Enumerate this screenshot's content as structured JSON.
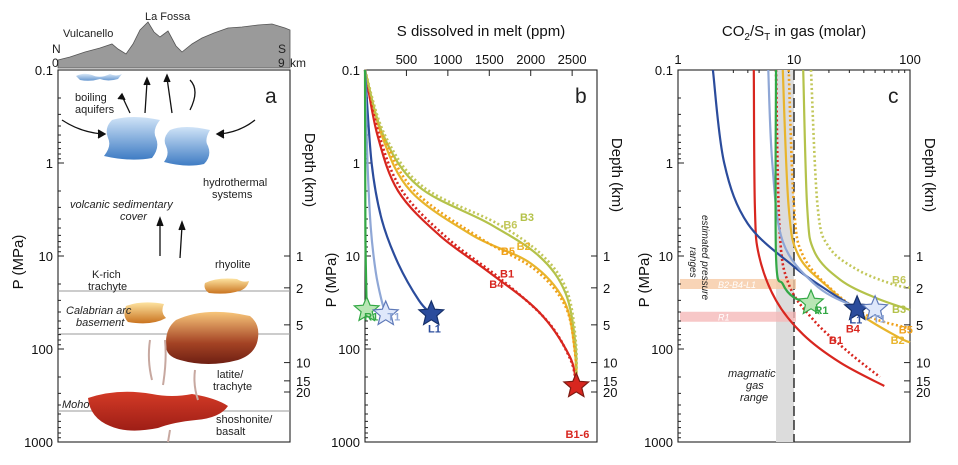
{
  "colors": {
    "B1": "#d8261f",
    "B2": "#e8b52c",
    "B3": "#b4c24a",
    "B4": "#d8261f",
    "B5": "#f0a11a",
    "B6": "#c2c75a",
    "L1": "#2b4c9c",
    "T1": "#8fa7d6",
    "R1": "#33a845",
    "star_red": "#d8261f"
  },
  "panel_a": {
    "letter": "a",
    "ylabel": "P (MPa)",
    "depth_label": "Depth (km)",
    "p_ticks": [
      "0.1",
      "1",
      "10",
      "100",
      "1000"
    ],
    "depth_ticks": [
      "1",
      "2",
      "5",
      "10",
      "15",
      "20"
    ],
    "profile": {
      "vulcanello": "Vulcanello",
      "la_fossa": "La Fossa",
      "n": "N",
      "s": "S",
      "zero": "0",
      "nine": "9",
      "km": "km"
    },
    "labels": {
      "boiling": "boiling",
      "aquifers": "aquifers",
      "hydro1": "hydrothermal",
      "hydro2": "systems",
      "volc1": "volcanic sedimentary",
      "volc2": "cover",
      "krich1": "K-rich",
      "krich2": "trachyte",
      "rhyolite": "rhyolite",
      "calab1": "Calabrian arc",
      "calab2": "basement",
      "latite1": "latite/",
      "latite2": "trachyte",
      "moho": "Moho",
      "shosh1": "shoshonite/",
      "shosh2": "basalt"
    }
  },
  "panel_b": {
    "letter": "b",
    "title": "S dissolved in melt (ppm)",
    "ylabel": "P (MPa)",
    "depth_label": "Depth (km)",
    "p_ticks": [
      "0.1",
      "1",
      "10",
      "100",
      "1000"
    ],
    "depth_ticks": [
      "1",
      "2",
      "5",
      "10",
      "15",
      "20"
    ],
    "chart_data": {
      "type": "line",
      "title": "S dissolved in melt (ppm)",
      "xlabel": "S dissolved in melt (ppm)",
      "ylabel": "P (MPa)",
      "x_ticks": [
        500,
        1000,
        1500,
        2000,
        2500
      ],
      "xlim": [
        0,
        2800
      ],
      "ylim": [
        0.1,
        1000
      ],
      "yscale": "log",
      "series": [
        {
          "name": "B1",
          "style": "solid",
          "points": [
            [
              0,
              0.1
            ],
            [
              150,
              0.5
            ],
            [
              400,
              2
            ],
            [
              900,
              6
            ],
            [
              1500,
              15
            ],
            [
              2100,
              40
            ],
            [
              2470,
              120
            ],
            [
              2550,
              250
            ]
          ]
        },
        {
          "name": "B2",
          "style": "solid",
          "points": [
            [
              0,
              0.1
            ],
            [
              200,
              0.5
            ],
            [
              550,
              2
            ],
            [
              1300,
              6
            ],
            [
              2000,
              12
            ],
            [
              2400,
              30
            ],
            [
              2530,
              100
            ],
            [
              2550,
              250
            ]
          ]
        },
        {
          "name": "B3",
          "style": "solid",
          "points": [
            [
              0,
              0.1
            ],
            [
              220,
              0.5
            ],
            [
              650,
              1.8
            ],
            [
              1500,
              4.5
            ],
            [
              2100,
              10
            ],
            [
              2420,
              25
            ],
            [
              2540,
              90
            ],
            [
              2550,
              250
            ]
          ]
        },
        {
          "name": "B4",
          "style": "dotted",
          "points": [
            [
              0,
              0.1
            ],
            [
              170,
              0.5
            ],
            [
              450,
              2
            ],
            [
              1000,
              6.5
            ],
            [
              1650,
              18
            ],
            [
              2200,
              50
            ],
            [
              2480,
              130
            ],
            [
              2550,
              250
            ]
          ]
        },
        {
          "name": "B5",
          "style": "dotted",
          "points": [
            [
              0,
              0.1
            ],
            [
              220,
              0.5
            ],
            [
              600,
              2
            ],
            [
              1400,
              6.5
            ],
            [
              2050,
              14
            ],
            [
              2420,
              35
            ],
            [
              2535,
              110
            ],
            [
              2550,
              250
            ]
          ]
        },
        {
          "name": "B6",
          "style": "dotted",
          "points": [
            [
              0,
              0.1
            ],
            [
              240,
              0.5
            ],
            [
              700,
              1.8
            ],
            [
              1600,
              4.5
            ],
            [
              2150,
              10
            ],
            [
              2440,
              24
            ],
            [
              2545,
              85
            ],
            [
              2550,
              250
            ]
          ]
        },
        {
          "name": "L1",
          "style": "solid",
          "points": [
            [
              0,
              0.1
            ],
            [
              80,
              1
            ],
            [
              200,
              4
            ],
            [
              400,
              12
            ],
            [
              650,
              30
            ],
            [
              800,
              42
            ]
          ]
        },
        {
          "name": "T1",
          "style": "solid",
          "points": [
            [
              0,
              0.1
            ],
            [
              30,
              1
            ],
            [
              70,
              5
            ],
            [
              130,
              15
            ],
            [
              200,
              30
            ],
            [
              250,
              42
            ]
          ]
        },
        {
          "name": "R1",
          "style": "solid",
          "points": [
            [
              0,
              0.1
            ],
            [
              5,
              5
            ],
            [
              15,
              20
            ],
            [
              20,
              38
            ]
          ]
        }
      ],
      "markers": [
        {
          "name": "R1",
          "x": 20,
          "y": 38
        },
        {
          "name": "T1",
          "x": 250,
          "y": 42
        },
        {
          "name": "L1",
          "x": 800,
          "y": 42
        },
        {
          "name": "B1-6",
          "x": 2550,
          "y": 250
        }
      ],
      "labels": [
        "B1",
        "B2",
        "B3",
        "B4",
        "B5",
        "B6",
        "L1",
        "T1",
        "R1",
        "B1-6"
      ]
    }
  },
  "panel_c": {
    "letter": "c",
    "title_main": "CO",
    "title_sub1": "2",
    "title_mid": "/S",
    "title_sub2": "T",
    "title_tail": " in gas (molar)",
    "ylabel": "P (MPa)",
    "depth_label": "Depth (km)",
    "p_ticks": [
      "0.1",
      "1",
      "10",
      "100",
      "1000"
    ],
    "depth_ticks": [
      "1",
      "2",
      "5",
      "10",
      "15",
      "20"
    ],
    "annotations": {
      "est1": "estimated pressure",
      "est2": "ranges",
      "band1": "B2-B4-L1",
      "band2": "R1",
      "mag1": "magmatic",
      "mag2": "gas",
      "mag3": "range"
    },
    "chart_data": {
      "type": "line",
      "title": "CO2/ST in gas (molar)",
      "xlabel": "CO2/ST in gas (molar)",
      "ylabel": "P (MPa)",
      "x_ticks": [
        1,
        10,
        100
      ],
      "xlim": [
        1,
        100
      ],
      "ylim": [
        0.1,
        1000
      ],
      "xscale": "log",
      "yscale": "log",
      "series": [
        {
          "name": "B1",
          "style": "solid",
          "points": [
            [
              4.5,
              0.1
            ],
            [
              4.6,
              3
            ],
            [
              5,
              10
            ],
            [
              7,
              30
            ],
            [
              12,
              70
            ],
            [
              25,
              140
            ],
            [
              60,
              250
            ]
          ]
        },
        {
          "name": "B2",
          "style": "solid",
          "points": [
            [
              8,
              0.1
            ],
            [
              9,
              3
            ],
            [
              11,
              10
            ],
            [
              20,
              22
            ],
            [
              40,
              45
            ],
            [
              80,
              75
            ],
            [
              100,
              85
            ]
          ]
        },
        {
          "name": "B3",
          "style": "solid",
          "points": [
            [
              12,
              0.1
            ],
            [
              13,
              3
            ],
            [
              15,
              9
            ],
            [
              25,
              18
            ],
            [
              50,
              28
            ],
            [
              100,
              38
            ]
          ]
        },
        {
          "name": "B4",
          "style": "dotted",
          "points": [
            [
              7,
              0.1
            ],
            [
              7.5,
              5
            ],
            [
              9,
              20
            ],
            [
              15,
              50
            ],
            [
              30,
              110
            ],
            [
              55,
              200
            ]
          ]
        },
        {
          "name": "B5",
          "style": "dotted",
          "points": [
            [
              9,
              0.1
            ],
            [
              10,
              3
            ],
            [
              12,
              10
            ],
            [
              22,
              24
            ],
            [
              45,
              45
            ],
            [
              100,
              60
            ]
          ]
        },
        {
          "name": "B6",
          "style": "dotted",
          "points": [
            [
              14,
              0.1
            ],
            [
              16,
              3
            ],
            [
              20,
              8
            ],
            [
              35,
              14
            ],
            [
              70,
              20
            ],
            [
              100,
              22
            ]
          ]
        },
        {
          "name": "L1",
          "style": "solid",
          "points": [
            [
              2,
              0.1
            ],
            [
              2.5,
              1
            ],
            [
              4,
              4.5
            ],
            [
              10,
              13
            ],
            [
              20,
              24
            ],
            [
              35,
              37
            ]
          ]
        },
        {
          "name": "T1",
          "style": "solid",
          "points": [
            [
              6,
              0.1
            ],
            [
              6.5,
              1
            ],
            [
              8,
              7
            ],
            [
              15,
              20
            ],
            [
              30,
              33
            ],
            [
              50,
              37
            ]
          ]
        },
        {
          "name": "R1",
          "style": "solid",
          "points": [
            [
              7,
              0.1
            ],
            [
              7,
              10
            ],
            [
              8,
              20
            ],
            [
              10,
              28
            ],
            [
              14,
              32
            ]
          ]
        }
      ],
      "markers": [
        {
          "name": "R1",
          "x": 14,
          "y": 32
        },
        {
          "name": "L1",
          "x": 35,
          "y": 37
        },
        {
          "name": "T1",
          "x": 50,
          "y": 37
        }
      ],
      "bands": [
        {
          "label": "B2-B4-L1",
          "y": 20
        },
        {
          "label": "R1",
          "y": 45
        }
      ],
      "vertical_range": [
        7,
        10
      ],
      "labels": [
        "B1",
        "B2",
        "B3",
        "B4",
        "B5",
        "B6",
        "L1",
        "T1",
        "R1"
      ]
    }
  }
}
